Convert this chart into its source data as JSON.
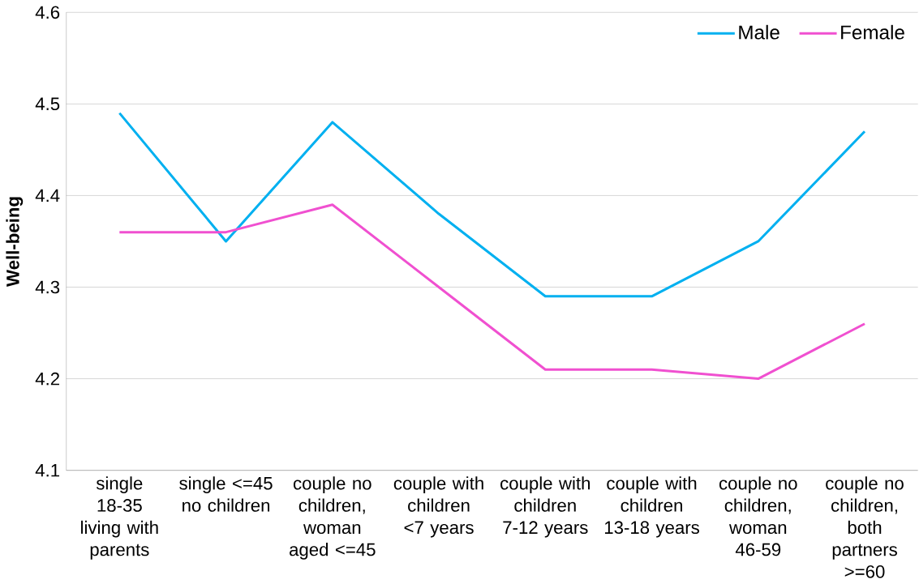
{
  "chart_data": {
    "type": "line",
    "ylabel": "Well-being",
    "categories": [
      "single 18-35 living with parents",
      "single <=45 no children",
      "couple no children, woman aged <=45",
      "couple with children <7 years",
      "couple with children 7-12 years",
      "couple with children 13-18 years",
      "couple no children, woman 46-59",
      "couple no children, both partners >=60"
    ],
    "series": [
      {
        "name": "Male",
        "color": "#00b0f0",
        "values": [
          4.49,
          4.35,
          4.48,
          4.38,
          4.29,
          4.29,
          4.35,
          4.47
        ]
      },
      {
        "name": "Female",
        "color": "#f050d0",
        "values": [
          4.36,
          4.36,
          4.39,
          4.3,
          4.21,
          4.21,
          4.2,
          4.26
        ]
      }
    ],
    "ylim": [
      4.1,
      4.6
    ],
    "yticks": [
      4.1,
      4.2,
      4.3,
      4.4,
      4.5,
      4.6
    ],
    "grid": "y",
    "legend": "top right",
    "marker": "none",
    "line_style": "solid"
  }
}
